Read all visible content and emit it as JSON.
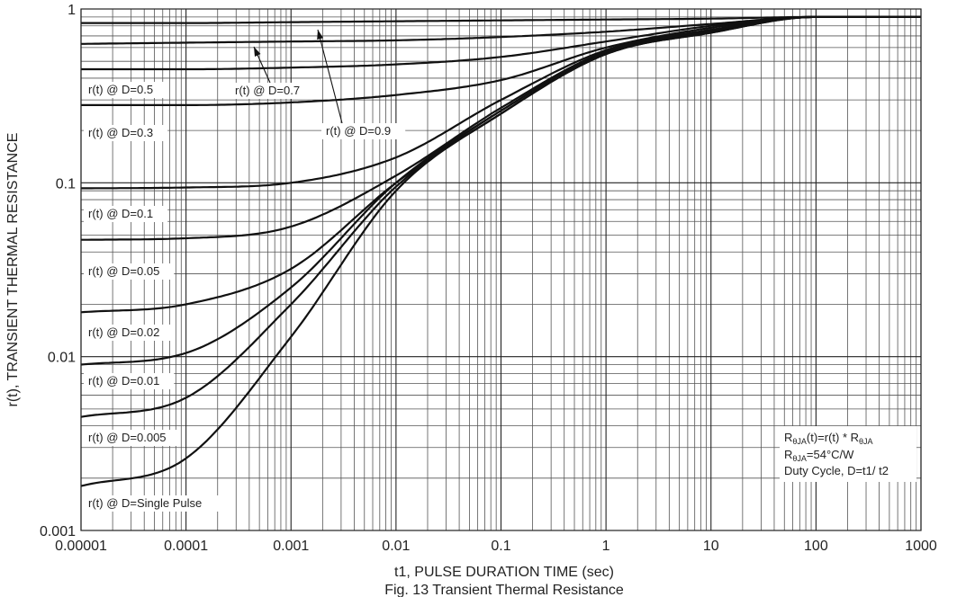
{
  "chart_data": {
    "type": "line",
    "xlabel": "t1, PULSE DURATION TIME (sec)",
    "ylabel": "r(t), TRANSIENT THERMAL RESISTANCE",
    "caption": "Fig. 13 Transient Thermal Resistance",
    "x_scale": "log",
    "y_scale": "log",
    "xlim": [
      1e-05,
      1000
    ],
    "ylim": [
      0.001,
      1
    ],
    "x_ticks": [
      "0.00001",
      "0.0001",
      "0.001",
      "0.01",
      "0.1",
      "1",
      "10",
      "100",
      "1000"
    ],
    "y_ticks": [
      "0.001",
      "0.01",
      "0.1",
      "1"
    ],
    "grid": true,
    "series": [
      {
        "name": "r(t) @ D=0.9",
        "x": [
          1e-05,
          0.0001,
          0.001,
          0.01,
          0.1,
          1,
          10,
          100,
          1000
        ],
        "y": [
          0.83,
          0.83,
          0.84,
          0.85,
          0.86,
          0.87,
          0.88,
          0.9,
          0.9
        ]
      },
      {
        "name": "r(t) @ D=0.7",
        "x": [
          1e-05,
          0.0001,
          0.001,
          0.01,
          0.1,
          1,
          10,
          100,
          1000
        ],
        "y": [
          0.63,
          0.64,
          0.65,
          0.66,
          0.69,
          0.74,
          0.82,
          0.9,
          0.9
        ]
      },
      {
        "name": "r(t) @ D=0.5",
        "x": [
          1e-05,
          0.0001,
          0.001,
          0.01,
          0.1,
          1,
          10,
          100,
          1000
        ],
        "y": [
          0.45,
          0.45,
          0.46,
          0.48,
          0.53,
          0.65,
          0.8,
          0.9,
          0.9
        ]
      },
      {
        "name": "r(t) @ D=0.3",
        "x": [
          1e-05,
          0.0001,
          0.001,
          0.01,
          0.1,
          1,
          10,
          100,
          1000
        ],
        "y": [
          0.28,
          0.28,
          0.29,
          0.32,
          0.39,
          0.6,
          0.78,
          0.9,
          0.9
        ]
      },
      {
        "name": "r(t) @ D=0.1",
        "x": [
          1e-05,
          0.0001,
          0.001,
          0.01,
          0.1,
          1,
          10,
          100,
          1000
        ],
        "y": [
          0.093,
          0.094,
          0.1,
          0.14,
          0.3,
          0.58,
          0.76,
          0.9,
          0.9
        ]
      },
      {
        "name": "r(t) @ D=0.05",
        "x": [
          1e-05,
          0.0001,
          0.001,
          0.01,
          0.1,
          1,
          10,
          100,
          1000
        ],
        "y": [
          0.047,
          0.048,
          0.056,
          0.11,
          0.27,
          0.57,
          0.75,
          0.9,
          0.9
        ]
      },
      {
        "name": "r(t) @ D=0.02",
        "x": [
          1e-05,
          0.0001,
          0.001,
          0.01,
          0.1,
          1,
          10,
          100,
          1000
        ],
        "y": [
          0.018,
          0.02,
          0.032,
          0.1,
          0.26,
          0.56,
          0.74,
          0.9,
          0.9
        ]
      },
      {
        "name": "r(t) @ D=0.01",
        "x": [
          1e-05,
          0.0001,
          0.001,
          0.01,
          0.1,
          1,
          10,
          100,
          1000
        ],
        "y": [
          0.009,
          0.0105,
          0.025,
          0.1,
          0.26,
          0.56,
          0.74,
          0.9,
          0.9
        ]
      },
      {
        "name": "r(t) @ D=0.005",
        "x": [
          1e-05,
          0.0001,
          0.001,
          0.01,
          0.1,
          1,
          10,
          100,
          1000
        ],
        "y": [
          0.0045,
          0.0058,
          0.02,
          0.095,
          0.25,
          0.55,
          0.73,
          0.9,
          0.9
        ]
      },
      {
        "name": "r(t) @ D=Single Pulse",
        "x": [
          1e-05,
          0.0001,
          0.001,
          0.01,
          0.1,
          1,
          10,
          100,
          1000
        ],
        "y": [
          0.0018,
          0.0026,
          0.013,
          0.09,
          0.25,
          0.55,
          0.73,
          0.9,
          0.9
        ]
      }
    ],
    "legend": "labels placed along curves on left side",
    "annotation": {
      "line1_main": "R",
      "line1_sub1": "θJA",
      "line1_mid": "(t)=r(t) * R",
      "line1_sub2": "θJA",
      "line2_main": "R",
      "line2_sub": "θJA",
      "line2_rest": "=54°C/W",
      "line3": "Duty Cycle, D=t1/ t2"
    }
  }
}
